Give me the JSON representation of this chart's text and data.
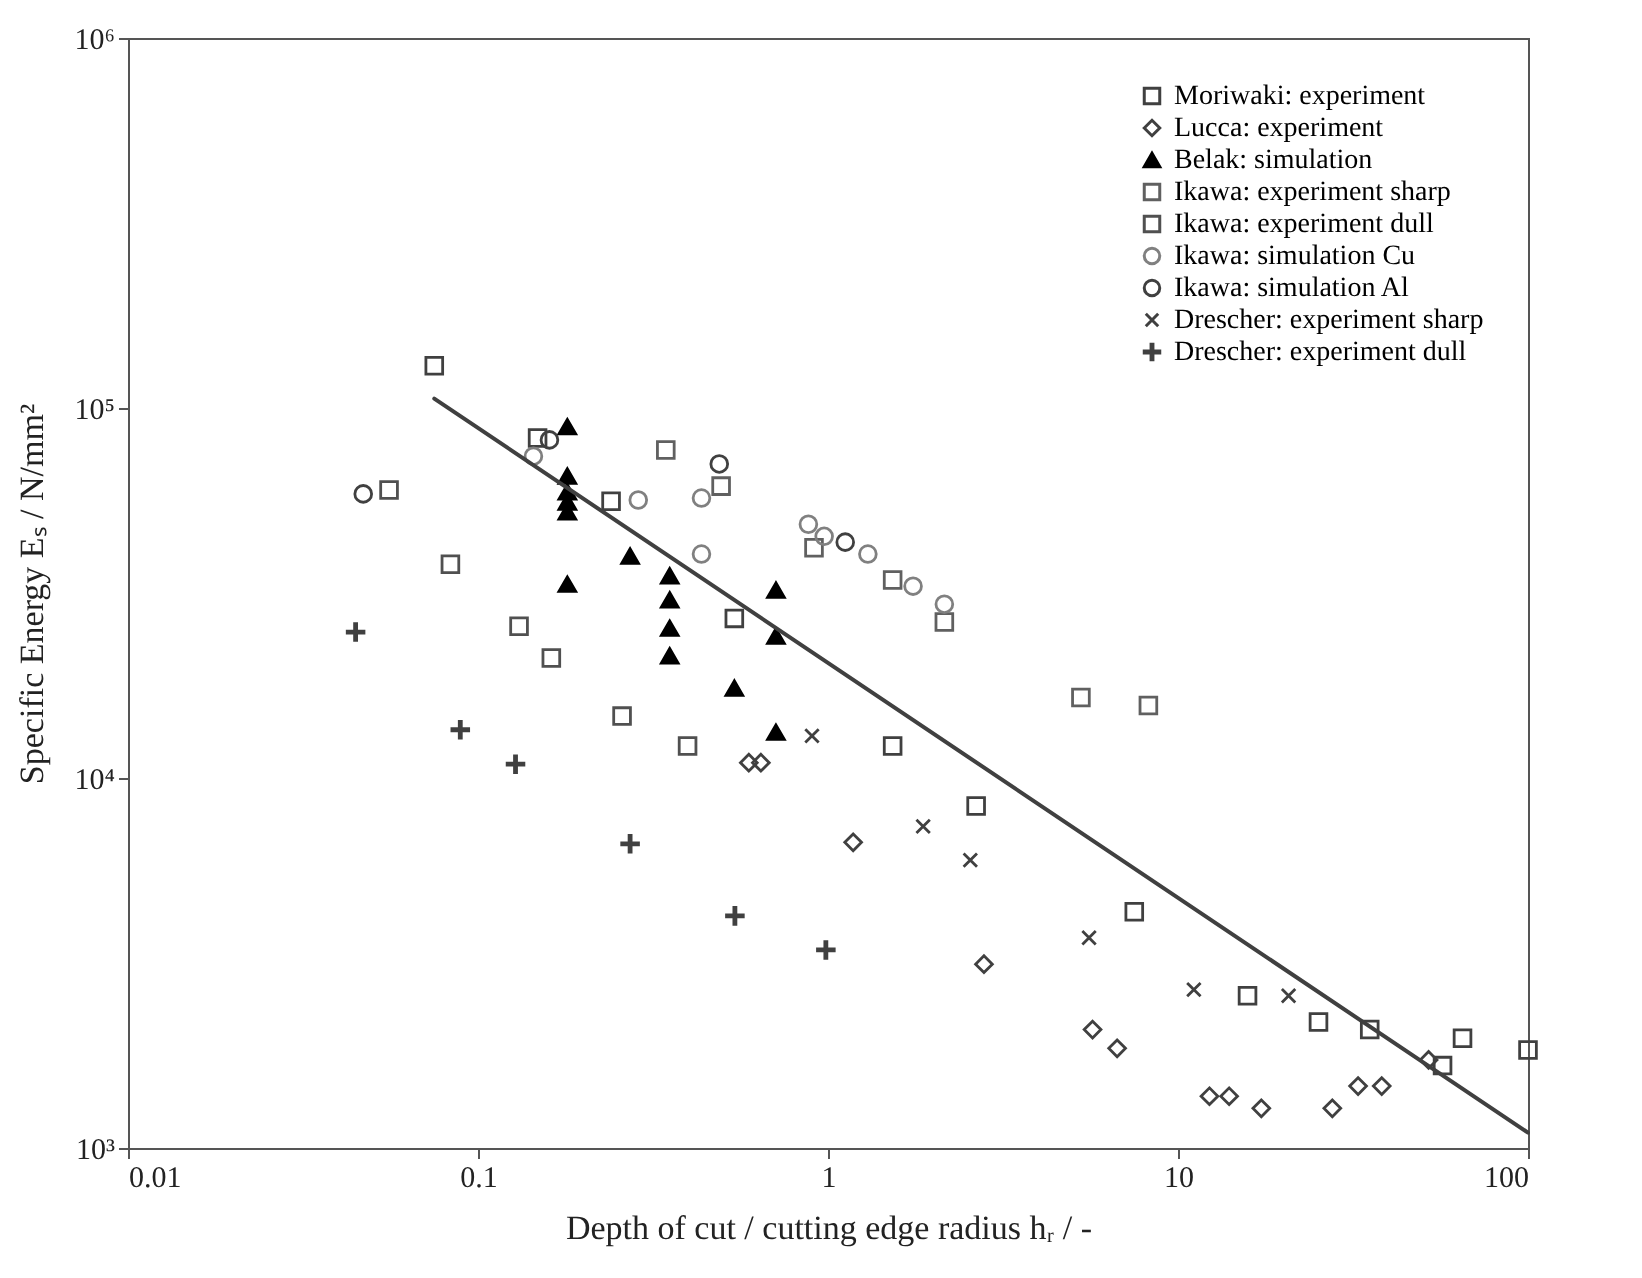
{
  "chart_data": {
    "type": "scatter",
    "xlabel": "Depth of cut / cutting edge radius hᵣ / -",
    "ylabel": "Specific Energy Eₛ / N/mm²",
    "log": "xy",
    "legend": "top right",
    "xlim": [
      0.01,
      100
    ],
    "xticks": [
      0.01,
      0.1,
      1,
      10,
      100
    ],
    "ylim": [
      1000,
      1000000
    ],
    "yticks": [
      {
        "value": 1000,
        "label": "10³"
      },
      {
        "value": 10000,
        "label": "10⁴"
      },
      {
        "value": 100000,
        "label": "10⁵"
      },
      {
        "value": 1000000,
        "label": "10⁶"
      }
    ],
    "series": [
      {
        "name": "Moriwaki: experiment",
        "color": "#404040",
        "marker": "square",
        "x": [
          0.075,
          0.148,
          0.24,
          0.54,
          1.53,
          2.65,
          7.5,
          15.8,
          25.2,
          35.3,
          57,
          65,
          100
        ],
        "values": [
          130000,
          83000,
          56000,
          27000,
          12200,
          8400,
          4350,
          2580,
          2190,
          2090,
          1670,
          1980,
          1840
        ]
      },
      {
        "name": "Lucca: experiment",
        "color": "#404040",
        "marker": "diamond",
        "x": [
          0.594,
          0.643,
          1.18,
          2.79,
          5.7,
          6.7,
          12.3,
          14.0,
          17.3,
          27.6,
          32.7,
          38.2,
          52
        ],
        "values": [
          11000,
          11000,
          6700,
          3140,
          2090,
          1860,
          1380,
          1380,
          1280,
          1280,
          1470,
          1470,
          1730
        ]
      },
      {
        "name": "Belak: simulation",
        "color": "#000000",
        "marker": "triangle",
        "x": [
          0.18,
          0.18,
          0.18,
          0.18,
          0.18,
          0.18,
          0.272,
          0.353,
          0.353,
          0.353,
          0.353,
          0.54,
          0.71,
          0.71,
          0.71
        ],
        "values": [
          89000,
          65500,
          59300,
          55700,
          52400,
          33400,
          39800,
          35200,
          30300,
          25400,
          21400,
          17500,
          32200,
          24200,
          13300
        ]
      },
      {
        "name": "Ikawa: experiment sharp",
        "color": "#606060",
        "marker": "square",
        "x": [
          0.344,
          0.495,
          0.912,
          1.53,
          2.15,
          5.28,
          8.23
        ],
        "values": [
          77000,
          61500,
          41900,
          34300,
          26400,
          16500,
          15700
        ]
      },
      {
        "name": "Ikawa: experiment dull",
        "color": "#505050",
        "marker": "square",
        "x": [
          0.0557,
          0.0834,
          0.131,
          0.162,
          0.258,
          0.397
        ],
        "values": [
          60000,
          37800,
          25700,
          21100,
          14700,
          12200
        ]
      },
      {
        "name": "Ikawa: simulation Cu",
        "color": "#808080",
        "marker": "circle",
        "x": [
          0.144,
          0.287,
          0.435,
          0.435,
          0.879,
          0.975,
          1.3,
          1.75,
          2.15
        ],
        "values": [
          74100,
          56400,
          57100,
          40300,
          48500,
          45000,
          40300,
          33000,
          29500
        ]
      },
      {
        "name": "Ikawa: simulation Al",
        "color": "#404040",
        "marker": "circle",
        "x": [
          0.047,
          0.16,
          0.489,
          1.12
        ],
        "values": [
          58600,
          82000,
          70600,
          43400
        ]
      },
      {
        "name": "Drescher: experiment sharp",
        "color": "#404040",
        "marker": "x",
        "x": [
          0.9,
          1.87,
          2.55,
          5.57,
          11.1,
          20.7
        ],
        "values": [
          13000,
          7400,
          6000,
          3700,
          2680,
          2580
        ]
      },
      {
        "name": "Drescher: experiment dull",
        "color": "#404040",
        "marker": "cross",
        "x": [
          0.0447,
          0.089,
          0.128,
          0.272,
          0.542,
          0.986
        ],
        "values": [
          24800,
          13500,
          10900,
          6640,
          4240,
          3430
        ]
      },
      {
        "type": "line",
        "color": "#404040",
        "x": [
          0.075,
          100
        ],
        "values": [
          106000,
          1100
        ]
      }
    ]
  }
}
